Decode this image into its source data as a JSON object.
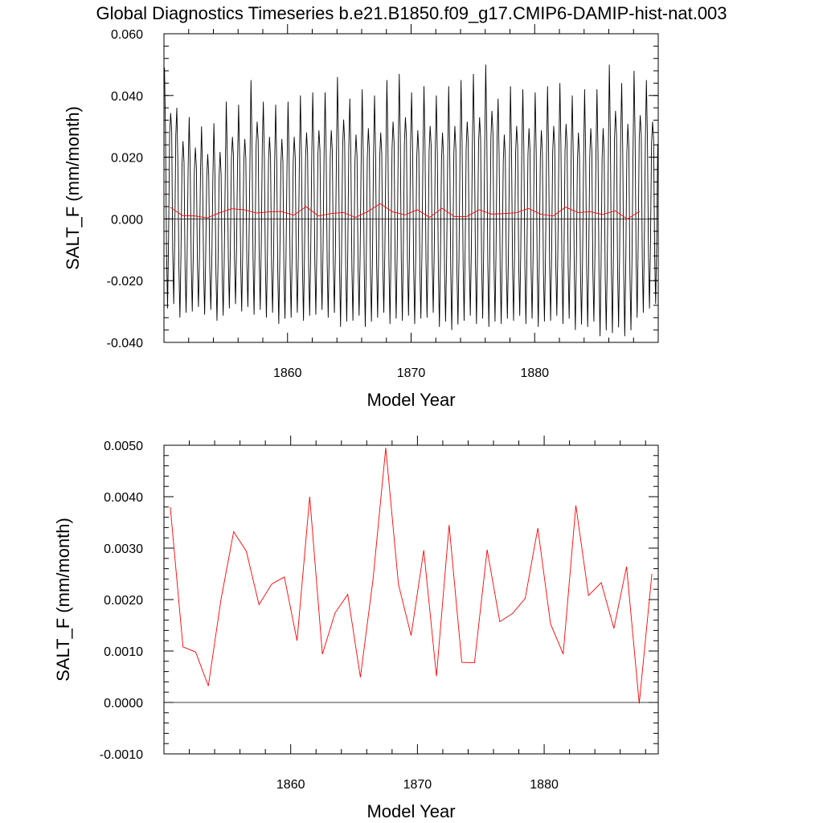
{
  "figure": {
    "title": "Global Diagnostics Timeseries b.e21.B1850.f09_g17.CMIP6-DAMIP-hist-nat.003"
  },
  "colors": {
    "monthly": "#000000",
    "annual": "#ff0000"
  },
  "chart_data": [
    {
      "type": "line",
      "title": "Global Diagnostics Timeseries b.e21.B1850.f09_g17.CMIP6-DAMIP-hist-nat.003",
      "xlabel": "Model Year",
      "ylabel": "SALT_F (mm/month)",
      "xlim": [
        1850,
        1890
      ],
      "ylim": [
        -0.04,
        0.06
      ],
      "xticks": [
        1860,
        1870,
        1880
      ],
      "xtick_labels": [
        "1860",
        "1870",
        "1880"
      ],
      "yticks": [
        -0.04,
        -0.02,
        0.0,
        0.02,
        0.04,
        0.06
      ],
      "ytick_labels": [
        "-0.040",
        "-0.020",
        "0.000",
        "0.020",
        "0.040",
        "0.060"
      ],
      "reference_line": 0,
      "grid": false,
      "series": [
        {
          "description": "monthly",
          "monthly_peaks": [
            0.049,
            0.036,
            0.033,
            0.03,
            0.031,
            0.038,
            0.037,
            0.045,
            0.038,
            0.037,
            0.038,
            0.04,
            0.041,
            0.041,
            0.046,
            0.039,
            0.042,
            0.04,
            0.045,
            0.047,
            0.041,
            0.043,
            0.04,
            0.043,
            0.045,
            0.047,
            0.05,
            0.039,
            0.043,
            0.042,
            0.041,
            0.043,
            0.044,
            0.04,
            0.042,
            0.042,
            0.05,
            0.044,
            0.048,
            0.045
          ],
          "monthly_troughs": [
            -0.029,
            -0.032,
            -0.03,
            -0.031,
            -0.033,
            -0.029,
            -0.03,
            -0.031,
            -0.032,
            -0.034,
            -0.032,
            -0.033,
            -0.031,
            -0.032,
            -0.035,
            -0.033,
            -0.035,
            -0.032,
            -0.034,
            -0.033,
            -0.034,
            -0.032,
            -0.035,
            -0.036,
            -0.033,
            -0.034,
            -0.035,
            -0.034,
            -0.033,
            -0.034,
            -0.035,
            -0.033,
            -0.034,
            -0.036,
            -0.035,
            -0.038,
            -0.037,
            -0.038,
            -0.032,
            -0.029
          ]
        },
        {
          "description": "annual",
          "x": [
            1850.5,
            1851.5,
            1852.5,
            1853.5,
            1854.5,
            1855.5,
            1856.5,
            1857.5,
            1858.5,
            1859.5,
            1860.5,
            1861.5,
            1862.5,
            1863.5,
            1864.5,
            1865.5,
            1866.5,
            1867.5,
            1868.5,
            1869.5,
            1870.5,
            1871.5,
            1872.5,
            1873.5,
            1874.5,
            1875.5,
            1876.5,
            1877.5,
            1878.5,
            1879.5,
            1880.5,
            1881.5,
            1882.5,
            1883.5,
            1884.5,
            1885.5,
            1886.5,
            1887.5,
            1888.5
          ],
          "values": [
            0.0038,
            0.00108,
            0.00098,
            0.00032,
            0.002,
            0.00332,
            0.00294,
            0.0019,
            0.0023,
            0.00244,
            0.0012,
            0.004,
            0.00094,
            0.00174,
            0.0021,
            0.00049,
            0.0024,
            0.00495,
            0.0023,
            0.0013,
            0.00296,
            0.00051,
            0.00345,
            0.00078,
            0.00077,
            0.00297,
            0.00157,
            0.00173,
            0.00202,
            0.00339,
            0.00153,
            0.00094,
            0.00383,
            0.00208,
            0.00233,
            0.00144,
            0.00264,
            -2e-05,
            0.0025
          ]
        }
      ]
    },
    {
      "type": "line",
      "xlabel": "Model Year",
      "ylabel": "SALT_F (mm/month)",
      "xlim": [
        1850,
        1889
      ],
      "ylim": [
        -0.001,
        0.005
      ],
      "xticks": [
        1860,
        1870,
        1880
      ],
      "xtick_labels": [
        "1860",
        "1870",
        "1880"
      ],
      "yticks": [
        -0.001,
        0.0,
        0.001,
        0.002,
        0.003,
        0.004,
        0.005
      ],
      "ytick_labels": [
        "-0.0010",
        "0.0000",
        "0.0010",
        "0.0020",
        "0.0030",
        "0.0040",
        "0.0050"
      ],
      "reference_line": 0,
      "grid": false,
      "series": [
        {
          "description": "annual",
          "x": [
            1850.5,
            1851.5,
            1852.5,
            1853.5,
            1854.5,
            1855.5,
            1856.5,
            1857.5,
            1858.5,
            1859.5,
            1860.5,
            1861.5,
            1862.5,
            1863.5,
            1864.5,
            1865.5,
            1866.5,
            1867.5,
            1868.5,
            1869.5,
            1870.5,
            1871.5,
            1872.5,
            1873.5,
            1874.5,
            1875.5,
            1876.5,
            1877.5,
            1878.5,
            1879.5,
            1880.5,
            1881.5,
            1882.5,
            1883.5,
            1884.5,
            1885.5,
            1886.5,
            1887.5,
            1888.5
          ],
          "values": [
            0.0038,
            0.00108,
            0.00098,
            0.00032,
            0.002,
            0.00332,
            0.00294,
            0.0019,
            0.0023,
            0.00244,
            0.0012,
            0.004,
            0.00094,
            0.00174,
            0.0021,
            0.00049,
            0.0024,
            0.00495,
            0.0023,
            0.0013,
            0.00296,
            0.00051,
            0.00345,
            0.00078,
            0.00077,
            0.00297,
            0.00157,
            0.00173,
            0.00202,
            0.00339,
            0.00153,
            0.00094,
            0.00383,
            0.00208,
            0.00233,
            0.00144,
            0.00264,
            -2e-05,
            0.0025
          ]
        }
      ]
    }
  ]
}
